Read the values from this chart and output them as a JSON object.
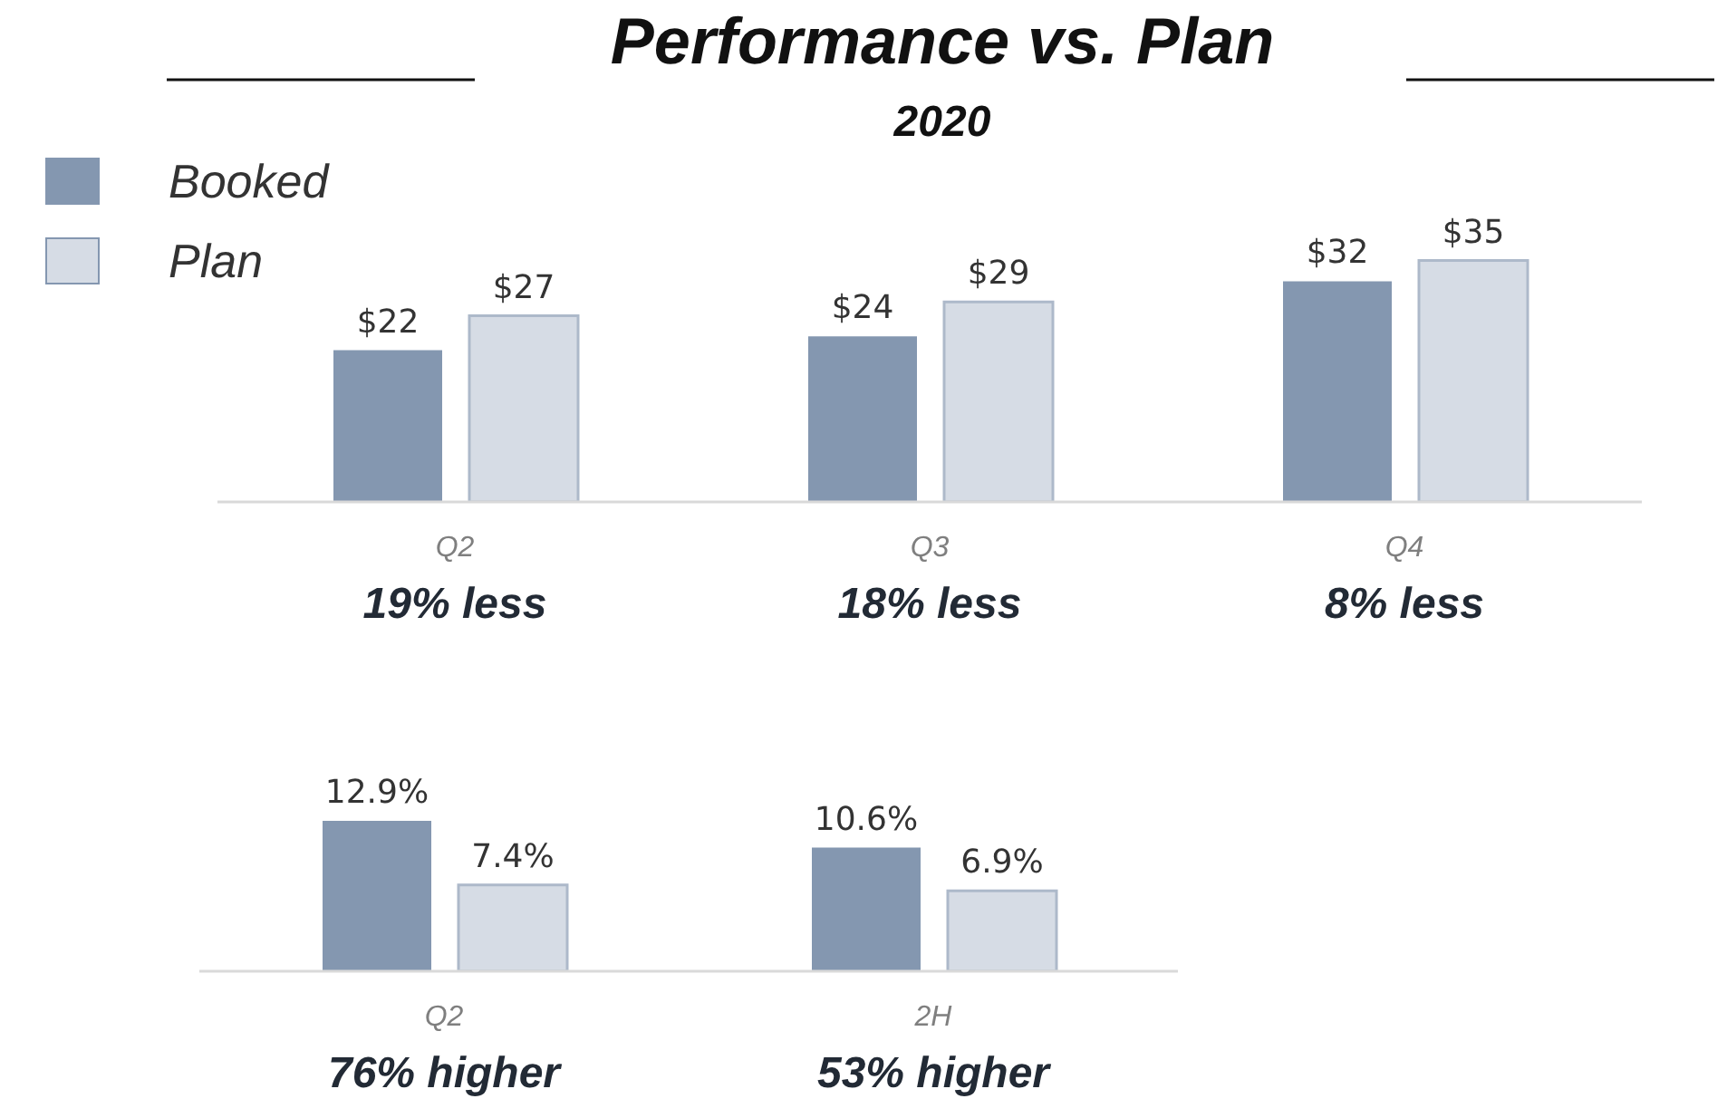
{
  "chart_data": [
    {
      "type": "bar",
      "title": "Performance vs. Plan",
      "subtitle": "2020",
      "categories": [
        "Q2",
        "Q3",
        "Q4"
      ],
      "series": [
        {
          "name": "Booked",
          "color": "#8497b0",
          "values": [
            22,
            24,
            32
          ],
          "value_labels": [
            "$22",
            "$24",
            "$32"
          ]
        },
        {
          "name": "Plan",
          "color": "#d6dce5",
          "values": [
            27,
            29,
            35
          ],
          "value_labels": [
            "$27",
            "$29",
            "$35"
          ]
        }
      ],
      "tick_labels": "x",
      "legend": "top left",
      "grid": false,
      "annotations": [
        "19% less",
        "18% less",
        "8% less"
      ]
    },
    {
      "type": "bar",
      "categories": [
        "Q2",
        "2H"
      ],
      "series": [
        {
          "color": "#8497b0",
          "values": [
            12.9,
            10.6
          ],
          "value_labels": [
            "12.9%",
            "10.6%"
          ]
        },
        {
          "color": "#d6dce5",
          "values": [
            7.4,
            6.9
          ],
          "value_labels": [
            "7.4%",
            "6.9%"
          ]
        }
      ],
      "tick_labels": "x",
      "legend": false,
      "grid": false,
      "annotations": [
        "76% higher",
        "53% higher"
      ]
    }
  ]
}
